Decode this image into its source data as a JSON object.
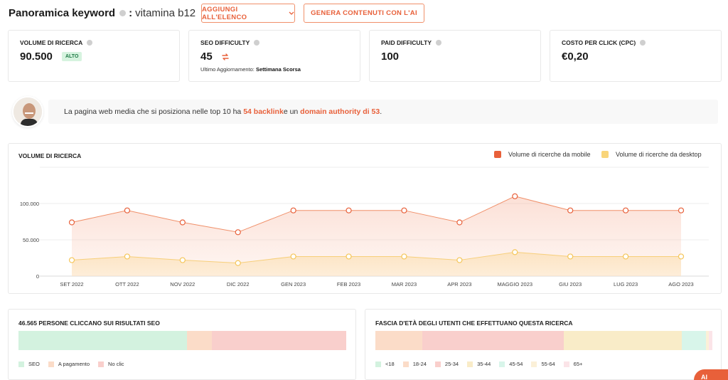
{
  "header": {
    "title": "Panoramica keyword",
    "colon": ":",
    "keyword": "vitamina b12"
  },
  "buttons": {
    "add_to_list": "AGGIUNGI ALL'ELENCO",
    "generate_ai": "GENERA CONTENUTI CON L'AI"
  },
  "metrics": {
    "search_volume": {
      "label": "VOLUME DI RICERCA",
      "value": "90.500",
      "badge": "ALTO"
    },
    "seo_difficulty": {
      "label": "SEO DIFFICULTY",
      "value": "45",
      "update_label": "Ultimo Aggiornamento:",
      "update_value": "Settimana Scorsa"
    },
    "paid_difficulty": {
      "label": "PAID DIFFICULTY",
      "value": "100"
    },
    "cpc": {
      "label": "COSTO PER CLICK (CPC)",
      "value": "€0,20"
    }
  },
  "tip": {
    "pre": "La pagina web media che si posiziona nelle top 10 ha ",
    "backlinks": "54 backlink",
    "mid": " e un ",
    "da": "domain authority di 53",
    "post": "."
  },
  "chart_data": {
    "type": "area",
    "title": "VOLUME DI RICERCA",
    "categories": [
      "SET 2022",
      "OTT 2022",
      "NOV 2022",
      "DIC 2022",
      "GEN 2023",
      "FEB 2023",
      "MAR 2023",
      "APR 2023",
      "MAGGIO 2023",
      "GIU 2023",
      "LUG 2023",
      "AGO 2023"
    ],
    "y_ticks": [
      "100.000",
      "50.000",
      "0"
    ],
    "ylim": [
      0,
      150000
    ],
    "series": [
      {
        "name": "Volume di ricerche da mobile",
        "color": "#e8603a",
        "values": [
          74000,
          90500,
          74000,
          60500,
          90500,
          90500,
          90500,
          74000,
          110000,
          90500,
          90500,
          90500
        ]
      },
      {
        "name": "Volume di ricerche da desktop",
        "color": "#f5c65a",
        "values": [
          22000,
          27000,
          22000,
          18000,
          27000,
          27000,
          27000,
          22000,
          33000,
          27000,
          27000,
          27000
        ]
      }
    ],
    "legend_position": "top-right",
    "grid": true
  },
  "clicks": {
    "title": "46.565 PERSONE CLICCANO SUI RISULTATI SEO",
    "segments": [
      {
        "name": "SEO",
        "color": "#d3f2df",
        "share": 0.515
      },
      {
        "name": "A pagamento",
        "color": "#fbdcc8",
        "share": 0.075
      },
      {
        "name": "No clic",
        "color": "#f9cfcc",
        "share": 0.41
      }
    ]
  },
  "age": {
    "title": "FASCIA D'ETÀ DEGLI UTENTI CHE EFFETTUANO QUESTA RICERCA",
    "segments": [
      {
        "name": "<18",
        "color": "#d3f2df",
        "share": 0.0
      },
      {
        "name": "18-24",
        "color": "#fbdcc8",
        "share": 0.14
      },
      {
        "name": "25-34",
        "color": "#f9cfcc",
        "share": 0.42
      },
      {
        "name": "35-44",
        "color": "#f9ecc8",
        "share": 0.35
      },
      {
        "name": "45-54",
        "color": "#d8f5ea",
        "share": 0.07
      },
      {
        "name": "55-64",
        "color": "#fbf0d8",
        "share": 0.01
      },
      {
        "name": "65+",
        "color": "#fbe4e8",
        "share": 0.01
      }
    ]
  },
  "float_button": {
    "label": "AI"
  }
}
